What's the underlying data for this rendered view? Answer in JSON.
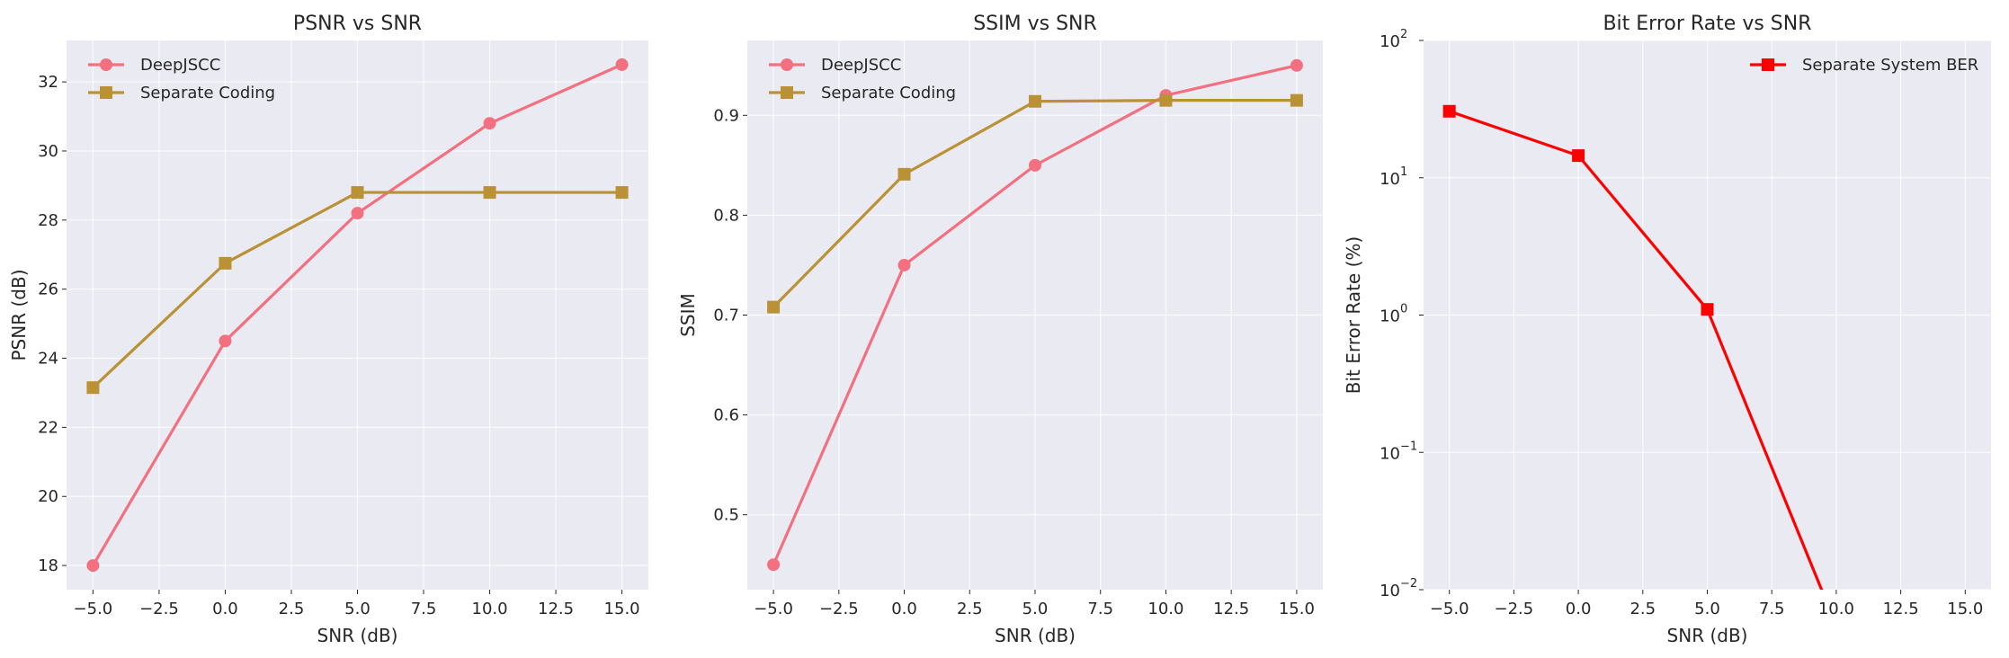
{
  "chart_data": [
    {
      "type": "line",
      "title": "PSNR vs SNR",
      "xlabel": "SNR (dB)",
      "ylabel": "PSNR (dB)",
      "x": [
        -5,
        0,
        5,
        10,
        15
      ],
      "xlim": [
        -6.0,
        16.0
      ],
      "ylim": [
        17.3,
        33.2
      ],
      "xticks": [
        -5.0,
        -2.5,
        0.0,
        2.5,
        5.0,
        7.5,
        10.0,
        12.5,
        15.0
      ],
      "xtick_labels": [
        "−5.0",
        "−2.5",
        "0.0",
        "2.5",
        "5.0",
        "7.5",
        "10.0",
        "12.5",
        "15.0"
      ],
      "yticks": [
        18,
        20,
        22,
        24,
        26,
        28,
        30,
        32
      ],
      "ytick_labels": [
        "18",
        "20",
        "22",
        "24",
        "26",
        "28",
        "30",
        "32"
      ],
      "yscale": "linear",
      "grid": true,
      "legend": "upper left",
      "series": [
        {
          "name": "DeepJSCC",
          "values": [
            18.0,
            24.5,
            28.2,
            30.8,
            32.5
          ],
          "color": "#f2707f",
          "marker": "circle"
        },
        {
          "name": "Separate Coding",
          "values": [
            23.15,
            26.75,
            28.8,
            28.8,
            28.8
          ],
          "color": "#bb9136",
          "marker": "square"
        }
      ]
    },
    {
      "type": "line",
      "title": "SSIM vs SNR",
      "xlabel": "SNR (dB)",
      "ylabel": "SSIM",
      "x": [
        -5,
        0,
        5,
        10,
        15
      ],
      "xlim": [
        -6.0,
        16.0
      ],
      "ylim": [
        0.425,
        0.975
      ],
      "xticks": [
        -5.0,
        -2.5,
        0.0,
        2.5,
        5.0,
        7.5,
        10.0,
        12.5,
        15.0
      ],
      "xtick_labels": [
        "−5.0",
        "−2.5",
        "0.0",
        "2.5",
        "5.0",
        "7.5",
        "10.0",
        "12.5",
        "15.0"
      ],
      "yticks": [
        0.5,
        0.6,
        0.7,
        0.8,
        0.9
      ],
      "ytick_labels": [
        "0.5",
        "0.6",
        "0.7",
        "0.8",
        "0.9"
      ],
      "yscale": "linear",
      "grid": true,
      "legend": "upper left",
      "series": [
        {
          "name": "DeepJSCC",
          "values": [
            0.45,
            0.75,
            0.85,
            0.92,
            0.95
          ],
          "color": "#f2707f",
          "marker": "circle"
        },
        {
          "name": "Separate Coding",
          "values": [
            0.708,
            0.841,
            0.914,
            0.915,
            0.915
          ],
          "color": "#bb9136",
          "marker": "square"
        }
      ]
    },
    {
      "type": "line",
      "title": "Bit Error Rate vs SNR",
      "xlabel": "SNR (dB)",
      "ylabel": "Bit Error Rate (%)",
      "x": [
        -5,
        0,
        5,
        10
      ],
      "xlim": [
        -6.0,
        16.0
      ],
      "ylim": [
        0.01,
        100
      ],
      "xticks": [
        -5.0,
        -2.5,
        0.0,
        2.5,
        5.0,
        7.5,
        10.0,
        12.5,
        15.0
      ],
      "xtick_labels": [
        "−5.0",
        "−2.5",
        "0.0",
        "2.5",
        "5.0",
        "7.5",
        "10.0",
        "12.5",
        "15.0"
      ],
      "yticks": [
        0.01,
        0.1,
        1,
        10,
        100
      ],
      "ytick_base": "10",
      "ytick_exponents": [
        "−2",
        "−1",
        "0",
        "1",
        "2"
      ],
      "yscale": "log",
      "grid": true,
      "legend": "upper right",
      "series": [
        {
          "name": "Separate System BER",
          "values": [
            30.5,
            14.5,
            1.1,
            0
          ],
          "color": "#ff0000",
          "marker": "square"
        }
      ]
    }
  ]
}
